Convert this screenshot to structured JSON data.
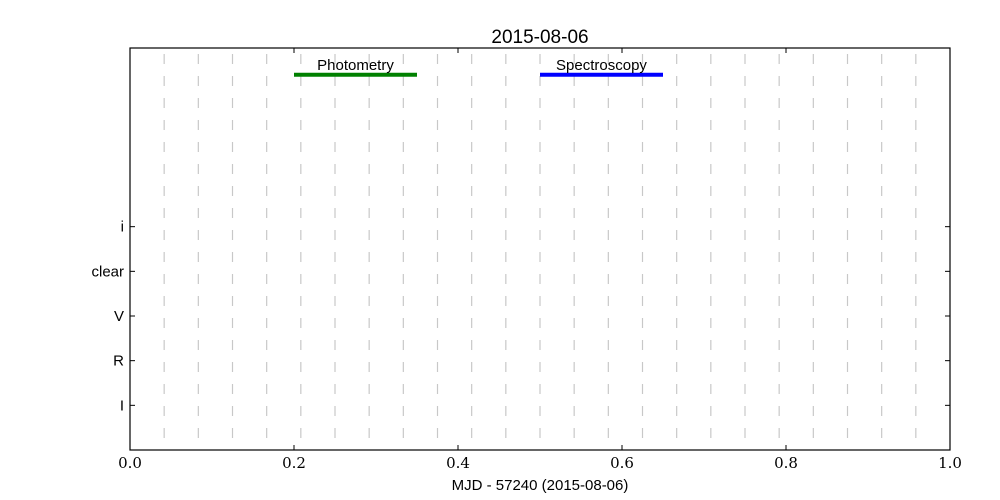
{
  "chart_data": {
    "type": "timeline",
    "title": "2015-08-06",
    "xlabel": "MJD - 57240 (2015-08-06)",
    "ylabel": "",
    "xlim": [
      0.0,
      1.0
    ],
    "ylim": [
      0,
      9
    ],
    "xticks": [
      0.0,
      0.2,
      0.4,
      0.6,
      0.8,
      1.0
    ],
    "xtick_labels": [
      "0.0",
      "0.2",
      "0.4",
      "0.6",
      "0.8",
      "1.0"
    ],
    "yticks": [
      {
        "label": "i",
        "value": 5
      },
      {
        "label": "clear",
        "value": 4
      },
      {
        "label": "V",
        "value": 3
      },
      {
        "label": "R",
        "value": 2
      },
      {
        "label": "I",
        "value": 1
      }
    ],
    "hour_gridlines": "dashed vertical lines every 1/24 day",
    "grid_color": "#c8c8c8",
    "segments": [
      {
        "label": "Photometry",
        "start": 0.2,
        "end": 0.35,
        "y": 8.4,
        "color": "#008000"
      },
      {
        "label": "Spectroscopy",
        "start": 0.5,
        "end": 0.65,
        "y": 8.4,
        "color": "#0000ff"
      }
    ]
  }
}
